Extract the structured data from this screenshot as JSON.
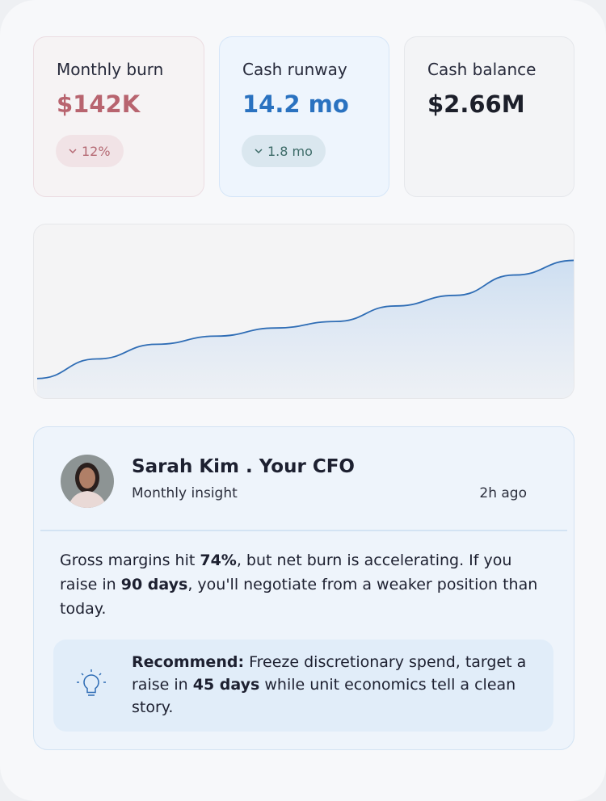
{
  "kpis": [
    {
      "label": "Monthly burn",
      "value": "$142K",
      "delta": "12%"
    },
    {
      "label": "Cash runway",
      "value": "14.2 mo",
      "delta": "1.8 mo"
    },
    {
      "label": "Cash balance",
      "value": "$2.66M"
    }
  ],
  "chart_data": {
    "type": "line",
    "categories": [
      null,
      null,
      null,
      null,
      null,
      null,
      null,
      null,
      null,
      null
    ],
    "values": [
      26,
      50,
      68,
      78,
      88,
      96,
      115,
      128,
      153,
      171
    ],
    "ylim": [
      0,
      215
    ],
    "color": "#2f6db5",
    "area": true
  },
  "insight": {
    "name": "Sarah Kim . Your CFO",
    "subtitle": "Monthly insight",
    "time": "2h ago",
    "body": [
      "Gross margins hit ",
      "74%",
      ", but net burn is accelerating. If you raise in ",
      "90 days",
      ", you'll negotiate from a weaker position than today."
    ],
    "recommend": [
      "Recommend:",
      " Freeze discretionary spend, target a raise in ",
      "45 days",
      " while unit economics tell a clean story."
    ]
  }
}
